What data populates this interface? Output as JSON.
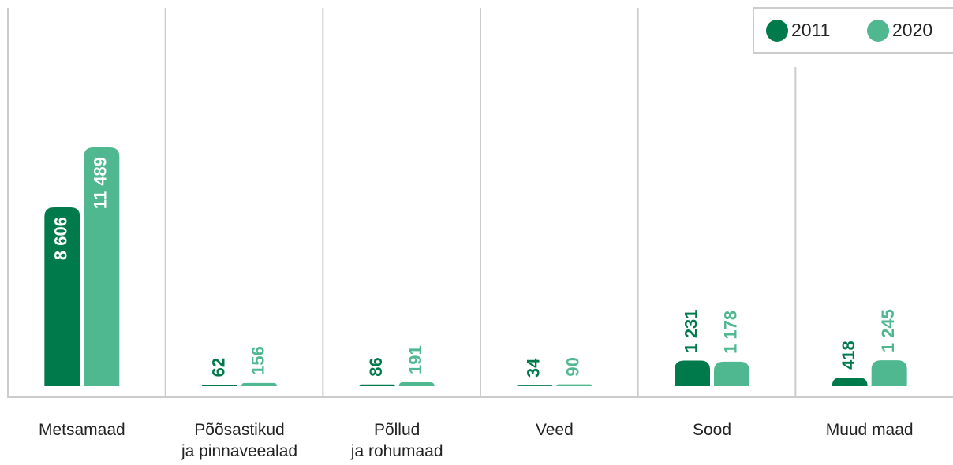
{
  "chart_data": {
    "type": "bar",
    "categories": [
      "Metsamaad",
      "Põõsastikud\nja pinnaveealad",
      "Põllud\nja rohumaad",
      "Veed",
      "Sood",
      "Muud maad"
    ],
    "series": [
      {
        "name": "2011",
        "color": "#007a4b",
        "values": [
          8606,
          62,
          86,
          34,
          1231,
          418
        ],
        "value_labels": [
          "8 606",
          "62",
          "86",
          "34",
          "1 231",
          "418"
        ]
      },
      {
        "name": "2020",
        "color": "#4fb890",
        "values": [
          11489,
          156,
          191,
          90,
          1178,
          1245
        ],
        "value_labels": [
          "11 489",
          "156",
          "191",
          "90",
          "1 178",
          "1 245"
        ]
      }
    ],
    "legend": "top-right"
  }
}
